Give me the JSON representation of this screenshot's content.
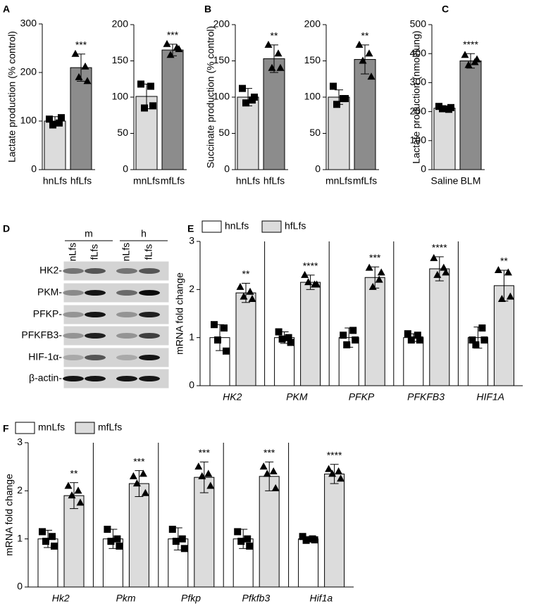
{
  "chart_data": [
    {
      "type": "bar",
      "panel": "A",
      "ylabel": "Lactate production (% control)",
      "ylim": [
        0,
        300
      ],
      "yticks": [
        0,
        100,
        200,
        300
      ],
      "categories": [
        "hnLfs",
        "hfLfs"
      ],
      "series": [
        {
          "colors": [
            "#dcdcdc",
            "#8c8c8c"
          ],
          "markers": [
            "square",
            "triangle"
          ],
          "values": [
            100,
            210
          ],
          "errors": [
            9,
            28
          ],
          "points": [
            [
              104,
              96,
              92,
              107
            ],
            [
              238,
              212,
              190,
              182
            ]
          ]
        }
      ],
      "significance": "***"
    },
    {
      "type": "bar",
      "ylim": [
        0,
        200
      ],
      "yticks": [
        0,
        50,
        100,
        150,
        200
      ],
      "categories": [
        "mnLfs",
        "mfLfs"
      ],
      "series": [
        {
          "colors": [
            "#dcdcdc",
            "#8c8c8c"
          ],
          "markers": [
            "square",
            "triangle"
          ],
          "values": [
            101,
            165
          ],
          "errors": [
            17,
            8
          ],
          "points": [
            [
              118,
              115,
              85,
              88
            ],
            [
              173,
              168,
              158,
              166
            ]
          ]
        }
      ],
      "significance": "***"
    },
    {
      "type": "bar",
      "panel": "B",
      "ylabel": "Succinate production (% control)",
      "ylim": [
        0,
        200
      ],
      "yticks": [
        0,
        50,
        100,
        150,
        200
      ],
      "categories": [
        "hnLfs",
        "hfLfs"
      ],
      "series": [
        {
          "colors": [
            "#dcdcdc",
            "#8c8c8c"
          ],
          "markers": [
            "square",
            "triangle"
          ],
          "values": [
            100,
            153
          ],
          "errors": [
            12,
            19
          ],
          "points": [
            [
              112,
              96,
              92,
              100
            ],
            [
              172,
              160,
              140,
              140
            ]
          ]
        }
      ],
      "significance": "**"
    },
    {
      "type": "bar",
      "ylim": [
        0,
        200
      ],
      "yticks": [
        0,
        50,
        100,
        150,
        200
      ],
      "categories": [
        "mnLfs",
        "mfLfs"
      ],
      "series": [
        {
          "colors": [
            "#dcdcdc",
            "#8c8c8c"
          ],
          "markers": [
            "square",
            "triangle"
          ],
          "values": [
            100,
            152
          ],
          "errors": [
            10,
            20
          ],
          "points": [
            [
              115,
              98,
              90,
              98
            ],
            [
              172,
              160,
              150,
              128
            ]
          ]
        }
      ],
      "significance": "**"
    },
    {
      "type": "bar",
      "panel": "C",
      "ylabel": "Lactate production (nmol/lung)",
      "ylim": [
        0,
        500
      ],
      "yticks": [
        0,
        100,
        200,
        300,
        400,
        500
      ],
      "categories": [
        "Saline",
        "BLM"
      ],
      "series": [
        {
          "colors": [
            "#dcdcdc",
            "#8c8c8c"
          ],
          "markers": [
            "square",
            "triangle"
          ],
          "values": [
            212,
            375
          ],
          "errors": [
            8,
            25
          ],
          "points": [
            [
              218,
              208,
              210,
              214
            ],
            [
              395,
              370,
              360,
              380
            ]
          ]
        }
      ],
      "significance": "****"
    },
    {
      "type": "grouped-bar",
      "panel": "E",
      "ylabel": "mRNA fold change",
      "ylim": [
        0,
        3
      ],
      "yticks": [
        0,
        1,
        2,
        3
      ],
      "category_style": "italic",
      "categories": [
        "HK2",
        "PKM",
        "PFKP",
        "PFKFB3",
        "HIF1A"
      ],
      "series": [
        {
          "name": "hnLfs",
          "color": "#ffffff",
          "marker": "square",
          "values": [
            1,
            1,
            1,
            1,
            1
          ],
          "errors": [
            0.27,
            0.12,
            0.2,
            0.08,
            0.22
          ],
          "points": [
            [
              1.27,
              1.2,
              0.95,
              0.72
            ],
            [
              1.12,
              1.0,
              0.97,
              0.9
            ],
            [
              1.05,
              1.15,
              0.85,
              0.95
            ],
            [
              1.08,
              1.05,
              0.95,
              0.95
            ],
            [
              0.95,
              1.2,
              0.85,
              0.95
            ]
          ]
        },
        {
          "name": "hfLfs",
          "color": "#dcdcdc",
          "marker": "triangle",
          "values": [
            1.93,
            2.15,
            2.25,
            2.43,
            2.08
          ],
          "errors": [
            0.2,
            0.15,
            0.22,
            0.25,
            0.32
          ],
          "points": [
            [
              2.05,
              1.95,
              1.85,
              1.8
            ],
            [
              2.3,
              2.1,
              2.15,
              2.1
            ],
            [
              2.45,
              2.2,
              2.05,
              2.35
            ],
            [
              2.65,
              2.45,
              2.3,
              2.35
            ],
            [
              2.4,
              2.35,
              1.8,
              1.85
            ]
          ]
        }
      ],
      "significance": [
        "**",
        "****",
        "***",
        "****",
        "**"
      ]
    },
    {
      "type": "grouped-bar",
      "panel": "F",
      "ylabel": "mRNA fold change",
      "ylim": [
        0,
        3
      ],
      "yticks": [
        0,
        1,
        2,
        3
      ],
      "category_style": "italic",
      "categories": [
        "Hk2",
        "Pkm",
        "Pfkp",
        "Pfkfb3",
        "Hif1a"
      ],
      "series": [
        {
          "name": "mnLfs",
          "color": "#ffffff",
          "marker": "square",
          "values": [
            1,
            1,
            1,
            1,
            1
          ],
          "errors": [
            0.18,
            0.2,
            0.23,
            0.2,
            0.05
          ],
          "points": [
            [
              1.15,
              1.05,
              0.95,
              0.85
            ],
            [
              1.2,
              1.0,
              0.95,
              0.85
            ],
            [
              1.2,
              1.0,
              0.95,
              0.8
            ],
            [
              1.15,
              1.0,
              0.95,
              0.85
            ],
            [
              1.05,
              1.0,
              0.97,
              0.98
            ]
          ]
        },
        {
          "name": "mfLfs",
          "color": "#dcdcdc",
          "marker": "triangle",
          "values": [
            1.9,
            2.15,
            2.28,
            2.3,
            2.35
          ],
          "errors": [
            0.27,
            0.27,
            0.32,
            0.3,
            0.2
          ],
          "points": [
            [
              2.1,
              2.0,
              1.9,
              1.75
            ],
            [
              2.3,
              2.35,
              2.15,
              1.95
            ],
            [
              2.5,
              2.35,
              2.3,
              2.1
            ],
            [
              2.5,
              2.4,
              2.35,
              2.05
            ],
            [
              2.45,
              2.4,
              2.35,
              2.25
            ]
          ]
        }
      ],
      "significance": [
        "**",
        "***",
        "***",
        "***",
        "****"
      ]
    }
  ],
  "blot": {
    "panel": "D",
    "groups": [
      {
        "label": "m",
        "lanes": [
          "nLfs",
          "fLfs"
        ]
      },
      {
        "label": "h",
        "lanes": [
          "nLfs",
          "fLfs"
        ]
      }
    ],
    "rows": [
      "HK2-",
      "PKM-",
      "PFKP-",
      "PFKFB3-",
      "HIF-1α-",
      "β-actin-"
    ]
  }
}
